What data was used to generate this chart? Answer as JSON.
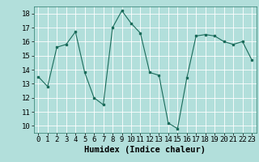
{
  "x": [
    0,
    1,
    2,
    3,
    4,
    5,
    6,
    7,
    8,
    9,
    10,
    11,
    12,
    13,
    14,
    15,
    16,
    17,
    18,
    19,
    20,
    21,
    22,
    23
  ],
  "y": [
    13.5,
    12.8,
    15.6,
    15.8,
    16.7,
    13.8,
    12.0,
    11.5,
    17.0,
    18.2,
    17.3,
    16.6,
    13.8,
    13.6,
    10.2,
    9.8,
    13.4,
    16.4,
    16.5,
    16.4,
    16.0,
    15.8,
    16.0,
    14.7
  ],
  "xlabel": "Humidex (Indice chaleur)",
  "ylim": [
    9.5,
    18.5
  ],
  "xlim": [
    -0.5,
    23.5
  ],
  "yticks": [
    10,
    11,
    12,
    13,
    14,
    15,
    16,
    17,
    18
  ],
  "xticks": [
    0,
    1,
    2,
    3,
    4,
    5,
    6,
    7,
    8,
    9,
    10,
    11,
    12,
    13,
    14,
    15,
    16,
    17,
    18,
    19,
    20,
    21,
    22,
    23
  ],
  "line_color": "#1a6b5a",
  "marker_color": "#1a6b5a",
  "bg_color": "#b2dfdb",
  "grid_color": "#ffffff",
  "xlabel_fontsize": 7.5,
  "tick_fontsize": 6.5
}
